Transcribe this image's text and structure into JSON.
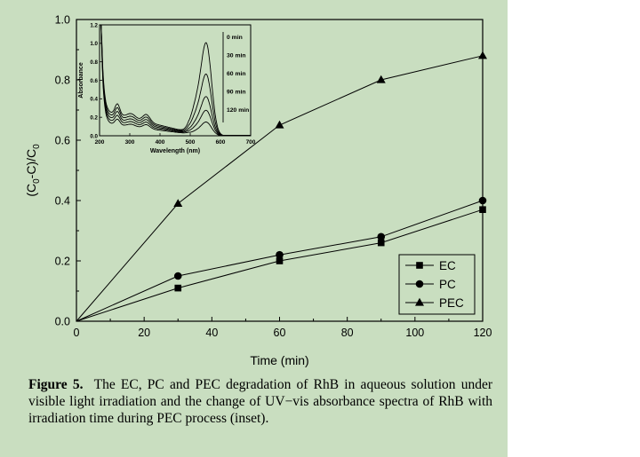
{
  "colors": {
    "background": "#c9dec0",
    "ink": "#000000"
  },
  "caption": {
    "label": "Figure 5.",
    "text": "The EC, PC and PEC degradation of RhB in aqueous solution under visible light irradiation and the change of UV−vis absorbance spectra of RhB with irradiation time during PEC process (inset)."
  },
  "chart_data": [
    {
      "type": "line",
      "xlabel": "Time (min)",
      "ylabel_parts": [
        "(C",
        "0",
        "-C)/C",
        "0"
      ],
      "xlim": [
        0,
        120
      ],
      "ylim": [
        0,
        1.0
      ],
      "xticks": [
        0,
        20,
        40,
        60,
        80,
        100,
        120
      ],
      "yticks": [
        "0.0",
        "0.2",
        "0.4",
        "0.6",
        "0.8",
        "1.0"
      ],
      "legend_position": "bottom-right",
      "series": [
        {
          "name": "EC",
          "marker": "square",
          "x": [
            0,
            30,
            60,
            90,
            120
          ],
          "values": [
            0.0,
            0.11,
            0.2,
            0.26,
            0.37
          ]
        },
        {
          "name": "PC",
          "marker": "circle",
          "x": [
            0,
            30,
            60,
            90,
            120
          ],
          "values": [
            0.0,
            0.15,
            0.22,
            0.28,
            0.4
          ]
        },
        {
          "name": "PEC",
          "marker": "triangle",
          "x": [
            0,
            30,
            60,
            90,
            120
          ],
          "values": [
            0.0,
            0.39,
            0.65,
            0.8,
            0.88
          ]
        }
      ]
    },
    {
      "type": "line",
      "xlabel": "Wavelength (nm)",
      "ylabel": "Absorbance",
      "xlim": [
        200,
        700
      ],
      "ylim": [
        0,
        1.2
      ],
      "xticks": [
        200,
        300,
        400,
        500,
        600,
        700
      ],
      "yticks": [
        "0.0",
        "0.2",
        "0.4",
        "0.6",
        "0.8",
        "1.0",
        "1.2"
      ],
      "legend_position": "right",
      "series": [
        {
          "name": "0 min",
          "peak": 0.95,
          "uv_scale": 1.0
        },
        {
          "name": "30 min",
          "peak": 0.63,
          "uv_scale": 0.88
        },
        {
          "name": "60 min",
          "peak": 0.4,
          "uv_scale": 0.76
        },
        {
          "name": "90 min",
          "peak": 0.26,
          "uv_scale": 0.64
        },
        {
          "name": "120 min",
          "peak": 0.14,
          "uv_scale": 0.52
        }
      ]
    }
  ]
}
